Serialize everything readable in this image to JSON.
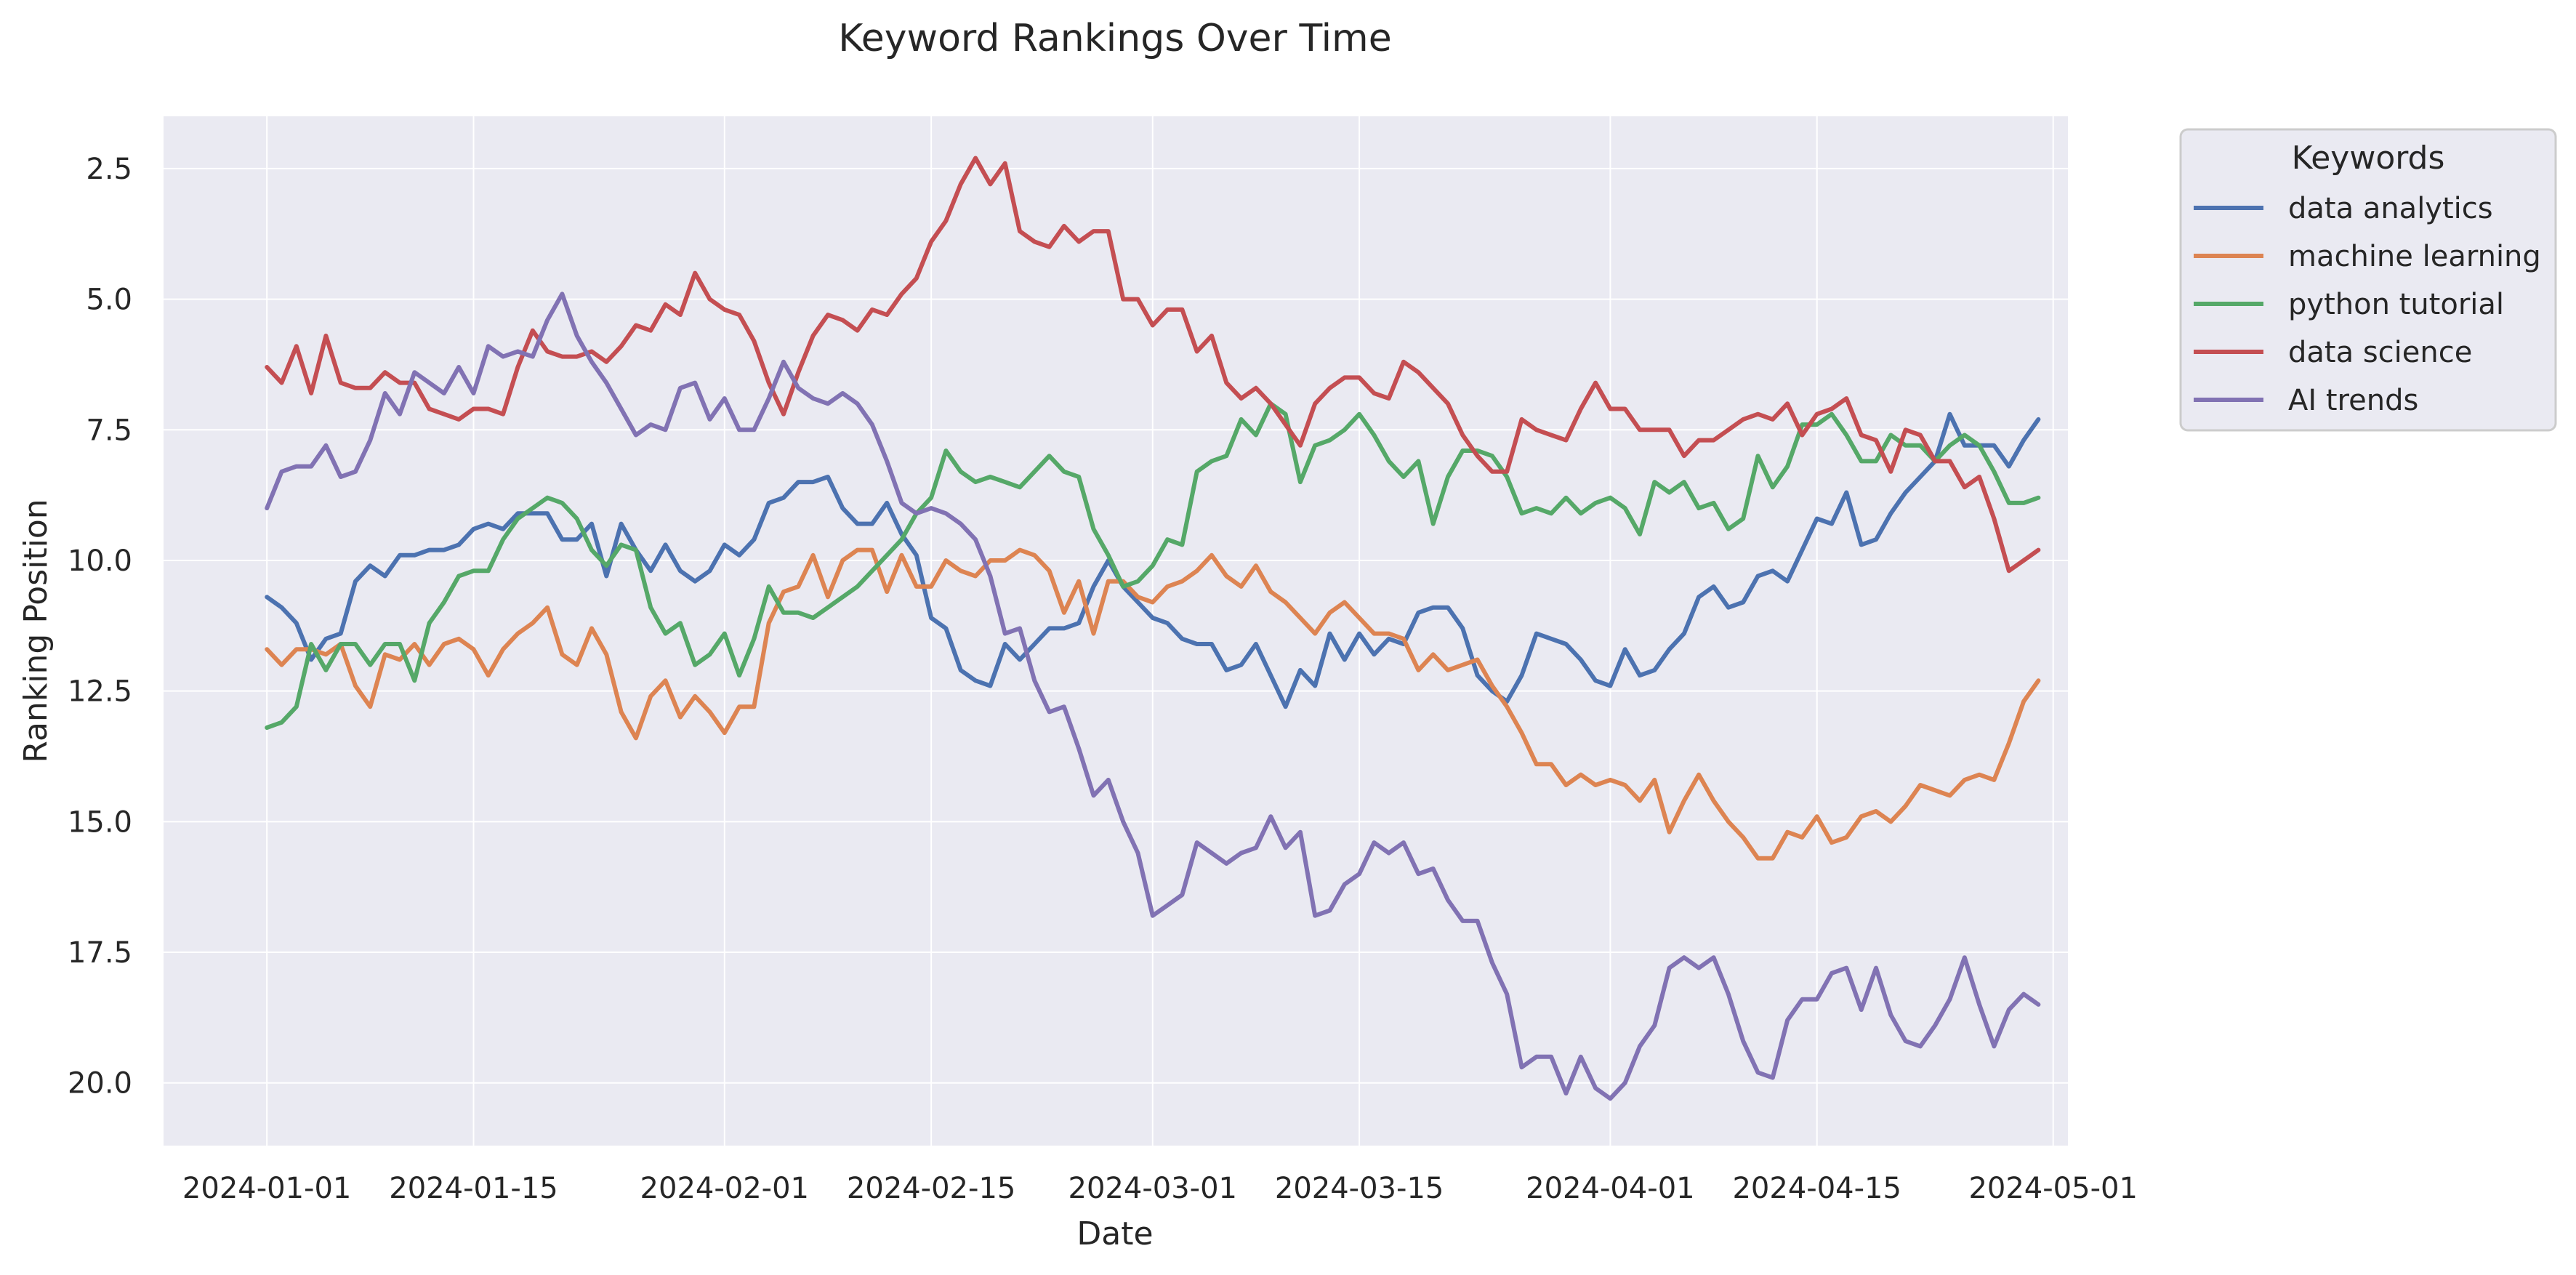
{
  "chart_data": {
    "type": "line",
    "title": "Keyword Rankings Over Time",
    "xlabel": "Date",
    "ylabel": "Ranking Position",
    "y_inverted": true,
    "ylim": [
      21.2,
      1.5
    ],
    "xlim": [
      "2023-12-25",
      "2024-05-02"
    ],
    "x_ticks": [
      "2024-01-01",
      "2024-01-15",
      "2024-02-01",
      "2024-02-15",
      "2024-03-01",
      "2024-03-15",
      "2024-04-01",
      "2024-04-15",
      "2024-05-01"
    ],
    "y_ticks": [
      "2.5",
      "5.0",
      "7.5",
      "10.0",
      "12.5",
      "15.0",
      "17.5",
      "20.0"
    ],
    "grid": true,
    "legend": {
      "title": "Keywords",
      "placement": "outside right"
    },
    "x_start": "2024-01-01",
    "x_step": "1 day",
    "series": [
      {
        "name": "data analytics",
        "color": "#4c72b0",
        "values": [
          10.7,
          10.9,
          11.2,
          11.9,
          11.5,
          11.4,
          10.4,
          10.1,
          10.3,
          9.9,
          9.9,
          9.8,
          9.8,
          9.7,
          9.4,
          9.3,
          9.4,
          9.1,
          9.1,
          9.1,
          9.6,
          9.6,
          9.3,
          10.3,
          9.3,
          9.8,
          10.2,
          9.7,
          10.2,
          10.4,
          10.2,
          9.7,
          9.9,
          9.6,
          8.9,
          8.8,
          8.5,
          8.5,
          8.4,
          9.0,
          9.3,
          9.3,
          8.9,
          9.5,
          9.9,
          11.1,
          11.3,
          12.1,
          12.3,
          12.4,
          11.6,
          11.9,
          11.6,
          11.3,
          11.3,
          11.2,
          10.5,
          10.0,
          10.5,
          10.8,
          11.1,
          11.2,
          11.5,
          11.6,
          11.6,
          12.1,
          12.0,
          11.6,
          12.2,
          12.8,
          12.1,
          12.4,
          11.4,
          11.9,
          11.4,
          11.8,
          11.5,
          11.6,
          11.0,
          10.9,
          10.9,
          11.3,
          12.2,
          12.5,
          12.7,
          12.2,
          11.4,
          11.5,
          11.6,
          11.9,
          12.3,
          12.4,
          11.7,
          12.2,
          12.1,
          11.7,
          11.4,
          10.7,
          10.5,
          10.9,
          10.8,
          10.3,
          10.2,
          10.4,
          9.8,
          9.2,
          9.3,
          8.7,
          9.7,
          9.6,
          9.1,
          8.7,
          8.4,
          8.1,
          7.2,
          7.8,
          7.8,
          7.8,
          8.2,
          7.7,
          7.3
        ]
      },
      {
        "name": "machine learning",
        "color": "#dd8452",
        "values": [
          11.7,
          12.0,
          11.7,
          11.7,
          11.8,
          11.6,
          12.4,
          12.8,
          11.8,
          11.9,
          11.6,
          12.0,
          11.6,
          11.5,
          11.7,
          12.2,
          11.7,
          11.4,
          11.2,
          10.9,
          11.8,
          12.0,
          11.3,
          11.8,
          12.9,
          13.4,
          12.6,
          12.3,
          13.0,
          12.6,
          12.9,
          13.3,
          12.8,
          12.8,
          11.2,
          10.6,
          10.5,
          9.9,
          10.7,
          10.0,
          9.8,
          9.8,
          10.6,
          9.9,
          10.5,
          10.5,
          10.0,
          10.2,
          10.3,
          10.0,
          10.0,
          9.8,
          9.9,
          10.2,
          11.0,
          10.4,
          11.4,
          10.4,
          10.4,
          10.7,
          10.8,
          10.5,
          10.4,
          10.2,
          9.9,
          10.3,
          10.5,
          10.1,
          10.6,
          10.8,
          11.1,
          11.4,
          11.0,
          10.8,
          11.1,
          11.4,
          11.4,
          11.5,
          12.1,
          11.8,
          12.1,
          12.0,
          11.9,
          12.4,
          12.8,
          13.3,
          13.9,
          13.9,
          14.3,
          14.1,
          14.3,
          14.2,
          14.3,
          14.6,
          14.2,
          15.2,
          14.6,
          14.1,
          14.6,
          15.0,
          15.3,
          15.7,
          15.7,
          15.2,
          15.3,
          14.9,
          15.4,
          15.3,
          14.9,
          14.8,
          15.0,
          14.7,
          14.3,
          14.4,
          14.5,
          14.2,
          14.1,
          14.2,
          13.5,
          12.7,
          12.3
        ]
      },
      {
        "name": "python tutorial",
        "color": "#55a868",
        "values": [
          13.2,
          13.1,
          12.8,
          11.6,
          12.1,
          11.6,
          11.6,
          12.0,
          11.6,
          11.6,
          12.3,
          11.2,
          10.8,
          10.3,
          10.2,
          10.2,
          9.6,
          9.2,
          9.0,
          8.8,
          8.9,
          9.2,
          9.8,
          10.1,
          9.7,
          9.8,
          10.9,
          11.4,
          11.2,
          12.0,
          11.8,
          11.4,
          12.2,
          11.5,
          10.5,
          11.0,
          11.0,
          11.1,
          10.9,
          10.7,
          10.5,
          10.2,
          9.9,
          9.6,
          9.1,
          8.8,
          7.9,
          8.3,
          8.5,
          8.4,
          8.5,
          8.6,
          8.3,
          8.0,
          8.3,
          8.4,
          9.4,
          9.9,
          10.5,
          10.4,
          10.1,
          9.6,
          9.7,
          8.3,
          8.1,
          8.0,
          7.3,
          7.6,
          7.0,
          7.2,
          8.5,
          7.8,
          7.7,
          7.5,
          7.2,
          7.6,
          8.1,
          8.4,
          8.1,
          9.3,
          8.4,
          7.9,
          7.9,
          8.0,
          8.4,
          9.1,
          9.0,
          9.1,
          8.8,
          9.1,
          8.9,
          8.8,
          9.0,
          9.5,
          8.5,
          8.7,
          8.5,
          9.0,
          8.9,
          9.4,
          9.2,
          8.0,
          8.6,
          8.2,
          7.4,
          7.4,
          7.2,
          7.6,
          8.1,
          8.1,
          7.6,
          7.8,
          7.8,
          8.1,
          7.8,
          7.6,
          7.8,
          8.3,
          8.9,
          8.9,
          8.8
        ]
      },
      {
        "name": "data science",
        "color": "#c44e52",
        "values": [
          6.3,
          6.6,
          5.9,
          6.8,
          5.7,
          6.6,
          6.7,
          6.7,
          6.4,
          6.6,
          6.6,
          7.1,
          7.2,
          7.3,
          7.1,
          7.1,
          7.2,
          6.3,
          5.6,
          6.0,
          6.1,
          6.1,
          6.0,
          6.2,
          5.9,
          5.5,
          5.6,
          5.1,
          5.3,
          4.5,
          5.0,
          5.2,
          5.3,
          5.8,
          6.6,
          7.2,
          6.4,
          5.7,
          5.3,
          5.4,
          5.6,
          5.2,
          5.3,
          4.9,
          4.6,
          3.9,
          3.5,
          2.8,
          2.3,
          2.8,
          2.4,
          3.7,
          3.9,
          4.0,
          3.6,
          3.9,
          3.7,
          3.7,
          5.0,
          5.0,
          5.5,
          5.2,
          5.2,
          6.0,
          5.7,
          6.6,
          6.9,
          6.7,
          7.0,
          7.4,
          7.8,
          7.0,
          6.7,
          6.5,
          6.5,
          6.8,
          6.9,
          6.2,
          6.4,
          6.7,
          7.0,
          7.6,
          8.0,
          8.3,
          8.3,
          7.3,
          7.5,
          7.6,
          7.7,
          7.1,
          6.6,
          7.1,
          7.1,
          7.5,
          7.5,
          7.5,
          8.0,
          7.7,
          7.7,
          7.5,
          7.3,
          7.2,
          7.3,
          7.0,
          7.6,
          7.2,
          7.1,
          6.9,
          7.6,
          7.7,
          8.3,
          7.5,
          7.6,
          8.1,
          8.1,
          8.6,
          8.4,
          9.2,
          10.2,
          10.0,
          9.8
        ]
      },
      {
        "name": "AI trends",
        "color": "#8172b3",
        "values": [
          9.0,
          8.3,
          8.2,
          8.2,
          7.8,
          8.4,
          8.3,
          7.7,
          6.8,
          7.2,
          6.4,
          6.6,
          6.8,
          6.3,
          6.8,
          5.9,
          6.1,
          6.0,
          6.1,
          5.4,
          4.9,
          5.7,
          6.2,
          6.6,
          7.1,
          7.6,
          7.4,
          7.5,
          6.7,
          6.6,
          7.3,
          6.9,
          7.5,
          7.5,
          6.9,
          6.2,
          6.7,
          6.9,
          7.0,
          6.8,
          7.0,
          7.4,
          8.1,
          8.9,
          9.1,
          9.0,
          9.1,
          9.3,
          9.6,
          10.3,
          11.4,
          11.3,
          12.3,
          12.9,
          12.8,
          13.6,
          14.5,
          14.2,
          15.0,
          15.6,
          16.8,
          16.6,
          16.4,
          15.4,
          15.6,
          15.8,
          15.6,
          15.5,
          14.9,
          15.5,
          15.2,
          16.8,
          16.7,
          16.2,
          16.0,
          15.4,
          15.6,
          15.4,
          16.0,
          15.9,
          16.5,
          16.9,
          16.9,
          17.7,
          18.3,
          19.7,
          19.5,
          19.5,
          20.2,
          19.5,
          20.1,
          20.3,
          20.0,
          19.3,
          18.9,
          17.8,
          17.6,
          17.8,
          17.6,
          18.3,
          19.2,
          19.8,
          19.9,
          18.8,
          18.4,
          18.4,
          17.9,
          17.8,
          18.6,
          17.8,
          18.7,
          19.2,
          19.3,
          18.9,
          18.4,
          17.6,
          18.5,
          19.3,
          18.6,
          18.3,
          18.5
        ]
      }
    ]
  }
}
